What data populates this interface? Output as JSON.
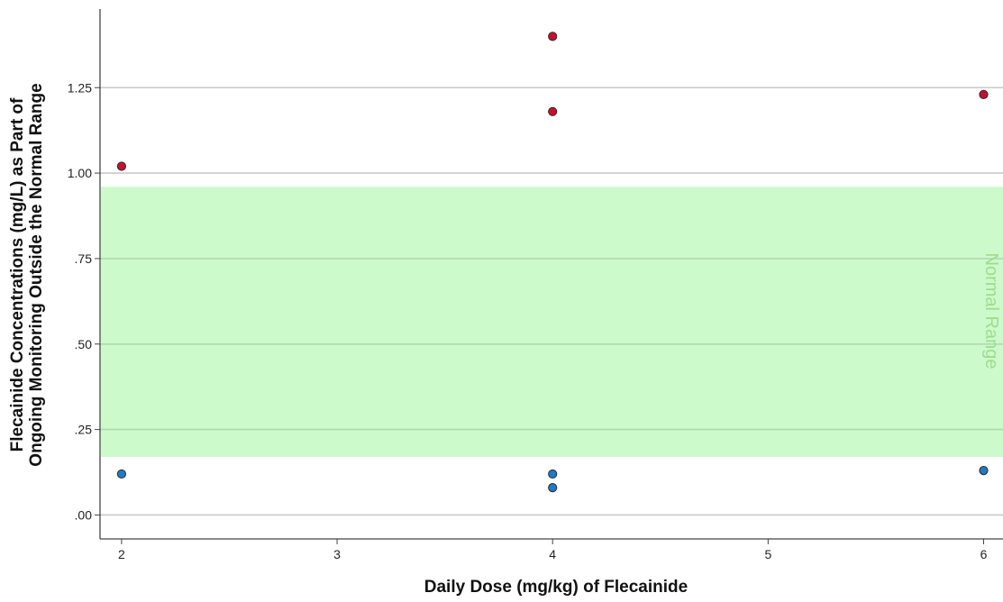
{
  "chart_data": {
    "type": "scatter",
    "xlabel": "Daily Dose (mg/kg) of Flecainide",
    "ylabel_lines": [
      "Flecainide Concentrations (mg/L) as Part of",
      "Ongoing Monitoring Outside the Normal Range"
    ],
    "xlim": [
      1.9,
      6.09
    ],
    "ylim": [
      -0.07,
      1.48
    ],
    "x_ticks": [
      2,
      3,
      4,
      5,
      6
    ],
    "x_tick_labels": [
      "2",
      "3",
      "4",
      "5",
      "6"
    ],
    "y_ticks": [
      0,
      0.25,
      0.5,
      0.75,
      1.0,
      1.25
    ],
    "y_tick_labels": [
      ".00",
      ".25",
      ".50",
      ".75",
      "1.00",
      "1.25"
    ],
    "grid": "horizontal",
    "reference_band": {
      "label": "Normal Range",
      "y_min": 0.17,
      "y_max": 0.96,
      "color": "#ccfacb"
    },
    "series": [
      {
        "color": "#c8102e",
        "points": [
          {
            "x": 2,
            "y": 1.02
          },
          {
            "x": 4,
            "y": 1.4
          },
          {
            "x": 4,
            "y": 1.18
          },
          {
            "x": 6,
            "y": 1.23
          }
        ]
      },
      {
        "color": "#1f7ac4",
        "points": [
          {
            "x": 2,
            "y": 0.12
          },
          {
            "x": 4,
            "y": 0.12
          },
          {
            "x": 4,
            "y": 0.08
          },
          {
            "x": 6,
            "y": 0.13
          }
        ]
      }
    ]
  }
}
